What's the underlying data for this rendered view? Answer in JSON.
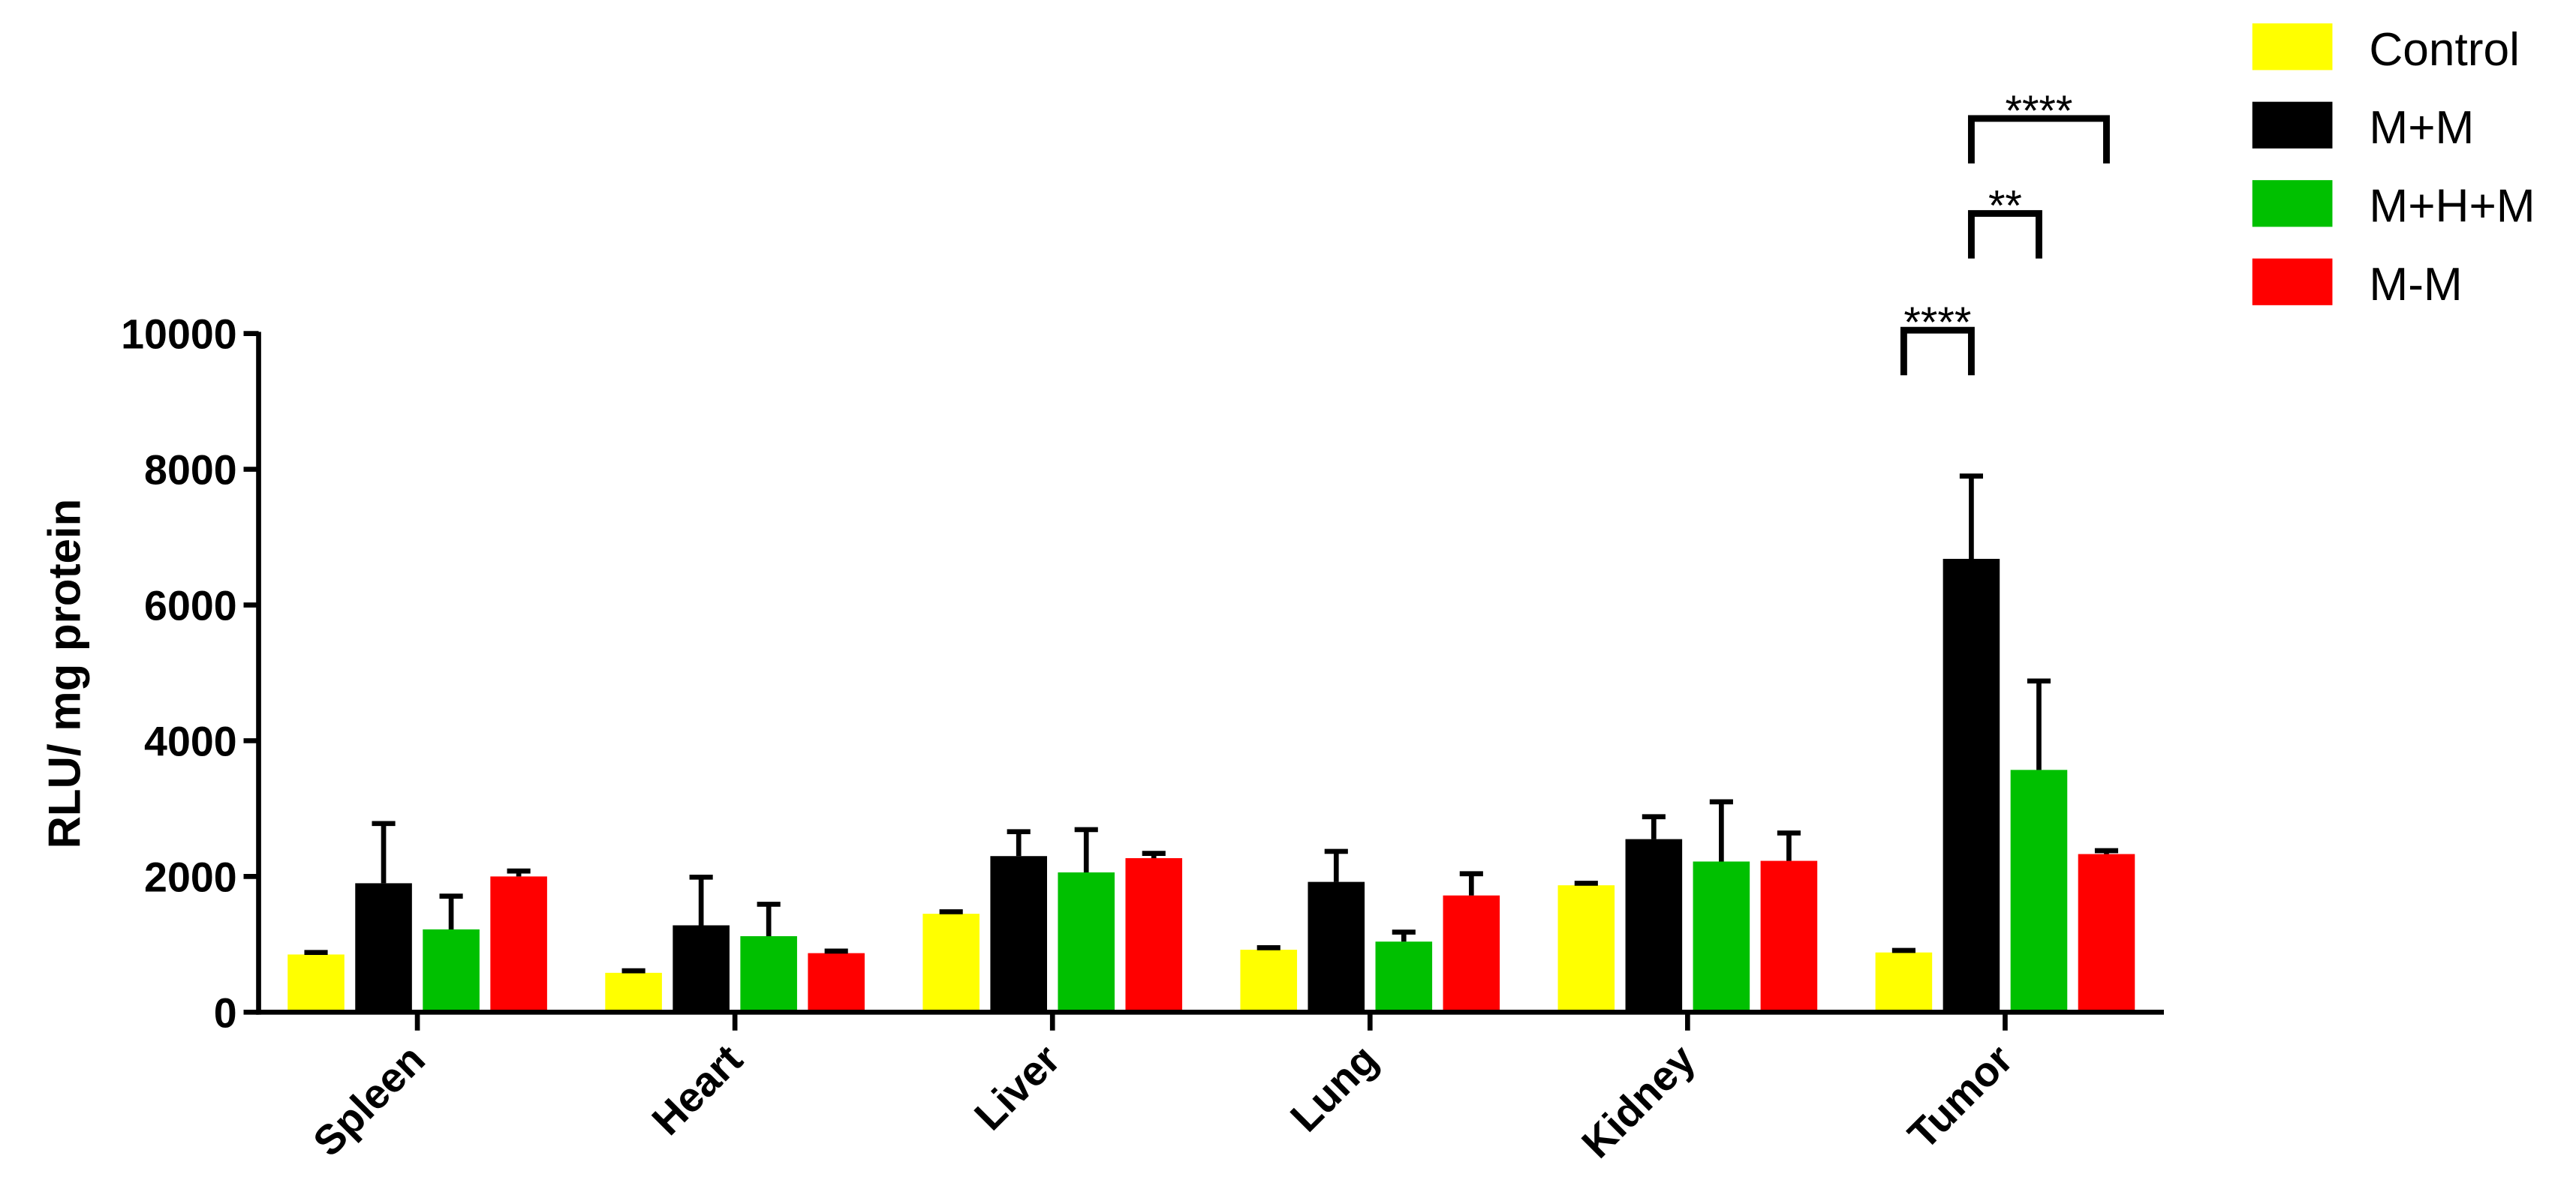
{
  "chart_data": {
    "type": "bar",
    "y_label": "RLU/ mg protein",
    "categories": [
      "Spleen",
      "Heart",
      "Liver",
      "Lung",
      "Kidney",
      "Tumor"
    ],
    "series": [
      {
        "name": "Control",
        "color": "#ffff00",
        "values": [
          850,
          580,
          1450,
          920,
          1870,
          880
        ],
        "errors": [
          30,
          30,
          30,
          30,
          30,
          30
        ]
      },
      {
        "name": "M+M",
        "color": "#000000",
        "values": [
          1900,
          1280,
          2300,
          1920,
          2550,
          6680
        ],
        "errors": [
          880,
          710,
          360,
          450,
          330,
          1220
        ]
      },
      {
        "name": "M+H+M",
        "color": "#00c000",
        "values": [
          1220,
          1120,
          2060,
          1040,
          2220,
          3570
        ],
        "errors": [
          490,
          470,
          630,
          140,
          880,
          1310
        ]
      },
      {
        "name": "M-M",
        "color": "#ff0000",
        "values": [
          2000,
          870,
          2270,
          1720,
          2230,
          2330
        ],
        "errors": [
          80,
          30,
          70,
          320,
          410,
          50
        ]
      }
    ],
    "annotations": [
      "****",
      "**",
      "****"
    ],
    "ylim": [
      0,
      10000
    ],
    "yticks": [
      0,
      2000,
      4000,
      6000,
      8000,
      10000
    ],
    "legend": "top-right"
  }
}
